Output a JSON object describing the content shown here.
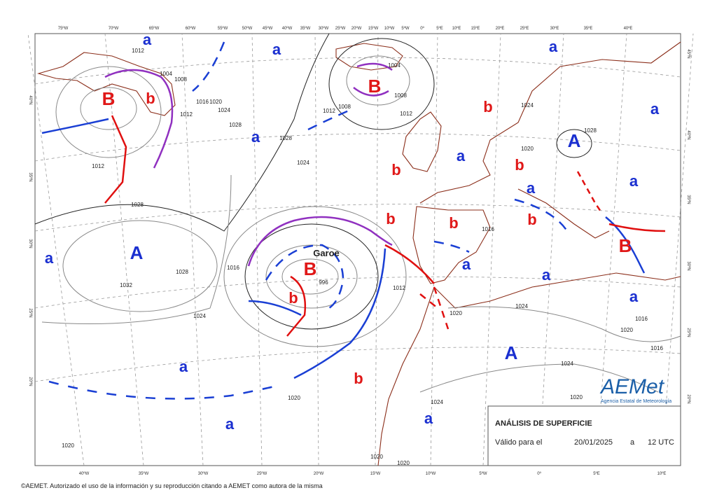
{
  "map": {
    "top_lon_labels": [
      "75ºW",
      "70ºW",
      "65ºW",
      "60ºW",
      "55ºW",
      "50ºW",
      "45ºW",
      "40ºW",
      "35ºW",
      "30ºW",
      "25ºW",
      "20ºW",
      "15ºW",
      "10ºW",
      "5ºW",
      "0º",
      "5ºE",
      "10ºE",
      "15ºE",
      "20ºE",
      "25ºE",
      "30ºE",
      "35ºE",
      "40ºE"
    ],
    "bottom_lon_labels": [
      "40ºW",
      "35ºW",
      "30ºW",
      "25ºW",
      "20ºW",
      "15ºW",
      "10ºW",
      "5ºW",
      "0º",
      "5ºE",
      "10ºE"
    ],
    "left_lat_labels": [
      "40ºN",
      "35ºN",
      "30ºN",
      "25ºN",
      "20ºN"
    ],
    "right_lat_labels": [
      "45ºN",
      "40ºN",
      "35ºN",
      "30ºN",
      "25ºN",
      "20ºN"
    ],
    "high_centers": [
      "A",
      "A",
      "A"
    ],
    "low_centers": [
      "B",
      "B",
      "B",
      "B"
    ],
    "relative_highs": [
      "a",
      "a",
      "a",
      "a",
      "a",
      "a",
      "a",
      "a",
      "a",
      "a",
      "a",
      "a",
      "a",
      "a",
      "a"
    ],
    "relative_lows": [
      "b",
      "b",
      "b",
      "b",
      "b",
      "b",
      "b",
      "b",
      "b"
    ],
    "storm_name": "Garoe",
    "isobar_labels": [
      "1012",
      "1004",
      "1008",
      "1012",
      "1016",
      "1020",
      "1024",
      "1028",
      "1028",
      "1012",
      "1028",
      "1028",
      "1032",
      "1016",
      "1024",
      "1024",
      "1020",
      "1012",
      "1008",
      "1004",
      "1008",
      "1012",
      "996",
      "1012",
      "1020",
      "1024",
      "1024",
      "1024",
      "1020",
      "1020",
      "1020",
      "1020",
      "1016",
      "1020",
      "1016",
      "1016",
      "1020",
      "1024",
      "1028"
    ]
  },
  "info_box": {
    "title": "ANÁLISIS DE SUPERFICIE",
    "valid_label": "Válido para el",
    "date": "20/01/2025",
    "connector": "a",
    "time": "12 UTC"
  },
  "logo": {
    "name": "AEMet",
    "subtitle": "Agencia Estatal de Meteorología"
  },
  "footer": "©AEMET. Autorizado el uso de la información y su reproducción citando a AEMET como autora de la misma"
}
